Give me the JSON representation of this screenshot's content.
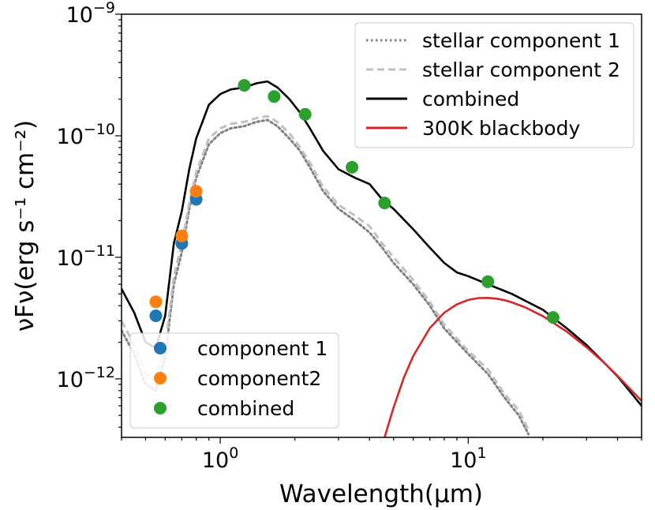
{
  "chart_data": {
    "type": "line",
    "xlabel": "Wavelength(μm)",
    "ylabel": "νFν(erg s⁻¹ cm⁻²)",
    "xscale": "log",
    "yscale": "log",
    "xlim": [
      0.4,
      50
    ],
    "ylim": [
      3.3e-13,
      1e-09
    ],
    "x_ticks": [
      {
        "value": 1,
        "base": "10",
        "exp": "0"
      },
      {
        "value": 10,
        "base": "10",
        "exp": "1"
      }
    ],
    "y_ticks": [
      {
        "value": 1e-09,
        "base": "10",
        "exp": "−9"
      },
      {
        "value": 1e-10,
        "base": "10",
        "exp": "−10"
      },
      {
        "value": 1e-11,
        "base": "10",
        "exp": "−11"
      },
      {
        "value": 1e-12,
        "base": "10",
        "exp": "−12"
      }
    ],
    "series": [
      {
        "name": "stellar component 1",
        "style": "dotted",
        "color": "#808080",
        "x": [
          0.4,
          0.45,
          0.5,
          0.55,
          0.6,
          0.65,
          0.7,
          0.75,
          0.8,
          0.9,
          1.0,
          1.1,
          1.25,
          1.4,
          1.55,
          1.7,
          1.9,
          2.1,
          2.3,
          2.6,
          3.0,
          3.5,
          4.0,
          4.5,
          5.0,
          6.0,
          7.0,
          8.0,
          10.0,
          12.0,
          14.0,
          16.0,
          17.5
        ],
        "y": [
          2.5e-12,
          1.6e-12,
          9e-13,
          8e-13,
          1.5e-12,
          6e-12,
          1.1e-11,
          2.5e-11,
          4.5e-11,
          8.5e-11,
          1.05e-10,
          1.15e-10,
          1.2e-10,
          1.3e-10,
          1.35e-10,
          1.2e-10,
          9.5e-11,
          7.5e-11,
          5.5e-11,
          3.5e-11,
          2.5e-11,
          2e-11,
          1.6e-11,
          1.2e-11,
          9e-12,
          6e-12,
          4e-12,
          2.6e-12,
          1.6e-12,
          1.1e-12,
          7e-13,
          5e-13,
          3.5e-13
        ]
      },
      {
        "name": "stellar component 2",
        "style": "dashed",
        "color": "#c0c0c0",
        "x": [
          0.4,
          0.45,
          0.5,
          0.55,
          0.6,
          0.65,
          0.7,
          0.75,
          0.8,
          0.9,
          1.0,
          1.1,
          1.25,
          1.4,
          1.55,
          1.7,
          1.9,
          2.1,
          2.3,
          2.6,
          3.0,
          3.5,
          4.0,
          4.5,
          5.0,
          6.0,
          7.0,
          8.0,
          10.0,
          12.0,
          14.0,
          16.0,
          17.5
        ],
        "y": [
          3e-12,
          1.9e-12,
          1.1e-12,
          1e-12,
          1.8e-12,
          7e-12,
          1.3e-11,
          2.8e-11,
          5e-11,
          9.5e-11,
          1.15e-10,
          1.25e-10,
          1.3e-10,
          1.4e-10,
          1.45e-10,
          1.3e-10,
          1.05e-10,
          8e-11,
          6e-11,
          3.8e-11,
          2.7e-11,
          2.2e-11,
          1.8e-11,
          1.3e-11,
          1e-11,
          6.5e-12,
          4.3e-12,
          2.8e-12,
          1.7e-12,
          1.2e-12,
          7.5e-13,
          5.5e-13,
          3.8e-13
        ]
      },
      {
        "name": "combined",
        "style": "solid",
        "color": "#000000",
        "x": [
          0.4,
          0.45,
          0.5,
          0.55,
          0.6,
          0.65,
          0.7,
          0.75,
          0.8,
          0.9,
          1.0,
          1.1,
          1.25,
          1.4,
          1.55,
          1.7,
          1.9,
          2.1,
          2.3,
          2.6,
          3.0,
          3.5,
          4.0,
          4.5,
          5.0,
          6.0,
          7.0,
          8.0,
          9.0,
          10.0,
          12.0,
          15.0,
          20.0,
          25.0,
          30.0,
          40.0,
          50.0
        ],
        "y": [
          5.5e-12,
          3.5e-12,
          2e-12,
          1.8e-12,
          3.3e-12,
          1.3e-11,
          2.4e-11,
          5.3e-11,
          9.5e-11,
          1.8e-10,
          2.2e-10,
          2.4e-10,
          2.5e-10,
          2.7e-10,
          2.8e-10,
          2.5e-10,
          2e-10,
          1.55e-10,
          1.15e-10,
          7.5e-11,
          5.3e-11,
          4.5e-11,
          4e-11,
          3e-11,
          2.5e-11,
          1.7e-11,
          1.2e-11,
          9e-12,
          7.5e-12,
          7e-12,
          6e-12,
          5e-12,
          3.7e-12,
          2.6e-12,
          1.9e-12,
          1.05e-12,
          6e-13
        ]
      },
      {
        "name": "300K blackbody",
        "style": "solid",
        "color": "#d62728",
        "x": [
          4.6,
          5.0,
          5.5,
          6.0,
          7.0,
          8.0,
          9.0,
          10.0,
          11.0,
          12.0,
          13.0,
          14.0,
          15.0,
          17.0,
          20.0,
          25.0,
          30.0,
          35.0,
          40.0,
          50.0
        ],
        "y": [
          3.3e-13,
          5.8e-13,
          1.02e-12,
          1.54e-12,
          2.62e-12,
          3.5e-12,
          4.1e-12,
          4.46e-12,
          4.62e-12,
          4.64e-12,
          4.57e-12,
          4.44e-12,
          4.26e-12,
          3.87e-12,
          3.28e-12,
          2.44e-12,
          1.82e-12,
          1.38e-12,
          1.06e-12,
          6.6e-13
        ]
      }
    ],
    "points": [
      {
        "name": "component 1",
        "color": "#1f77b4",
        "x": [
          0.55,
          0.7,
          0.8
        ],
        "y": [
          3.3e-12,
          1.3e-11,
          3e-11
        ]
      },
      {
        "name": "component2",
        "color": "#ff7f0e",
        "x": [
          0.55,
          0.7,
          0.8
        ],
        "y": [
          4.3e-12,
          1.5e-11,
          3.5e-11
        ]
      },
      {
        "name": "combined",
        "color": "#2ca02c",
        "x": [
          1.25,
          1.65,
          2.2,
          3.4,
          4.6,
          12.0,
          22.0
        ],
        "y": [
          2.6e-10,
          2.1e-10,
          1.5e-10,
          5.5e-11,
          2.8e-11,
          6.3e-12,
          3.2e-12
        ]
      }
    ],
    "legend_lines": {
      "location": "upper right",
      "entries": [
        {
          "label": "stellar component 1",
          "style": "dotted",
          "color": "#808080"
        },
        {
          "label": "stellar component 2",
          "style": "dashed",
          "color": "#c0c0c0"
        },
        {
          "label": "combined",
          "style": "solid",
          "color": "#000000"
        },
        {
          "label": "300K blackbody",
          "style": "solid",
          "color": "#d62728"
        }
      ]
    },
    "legend_points": {
      "location": "lower left",
      "entries": [
        {
          "label": "component 1",
          "color": "#1f77b4"
        },
        {
          "label": "component2",
          "color": "#ff7f0e"
        },
        {
          "label": "combined",
          "color": "#2ca02c"
        }
      ]
    }
  }
}
